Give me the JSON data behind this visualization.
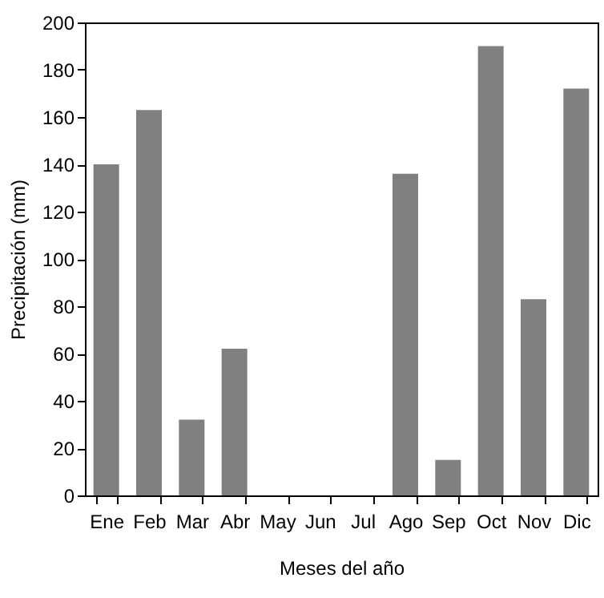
{
  "chart_data": {
    "type": "bar",
    "xlabel": "Meses del año",
    "ylabel": "Precipitación (mm)",
    "categories": [
      "Ene",
      "Feb",
      "Mar",
      "Abr",
      "May",
      "Jun",
      "Jul",
      "Ago",
      "Sep",
      "Oct",
      "Nov",
      "Dic"
    ],
    "values": [
      140,
      163,
      32,
      62,
      0,
      0,
      0,
      136,
      15,
      190,
      83,
      172
    ],
    "color": "#808080",
    "ylim": [
      0,
      200
    ],
    "yticks": [
      0,
      20,
      40,
      60,
      80,
      100,
      120,
      140,
      160,
      180,
      200
    ],
    "grid": false
  }
}
